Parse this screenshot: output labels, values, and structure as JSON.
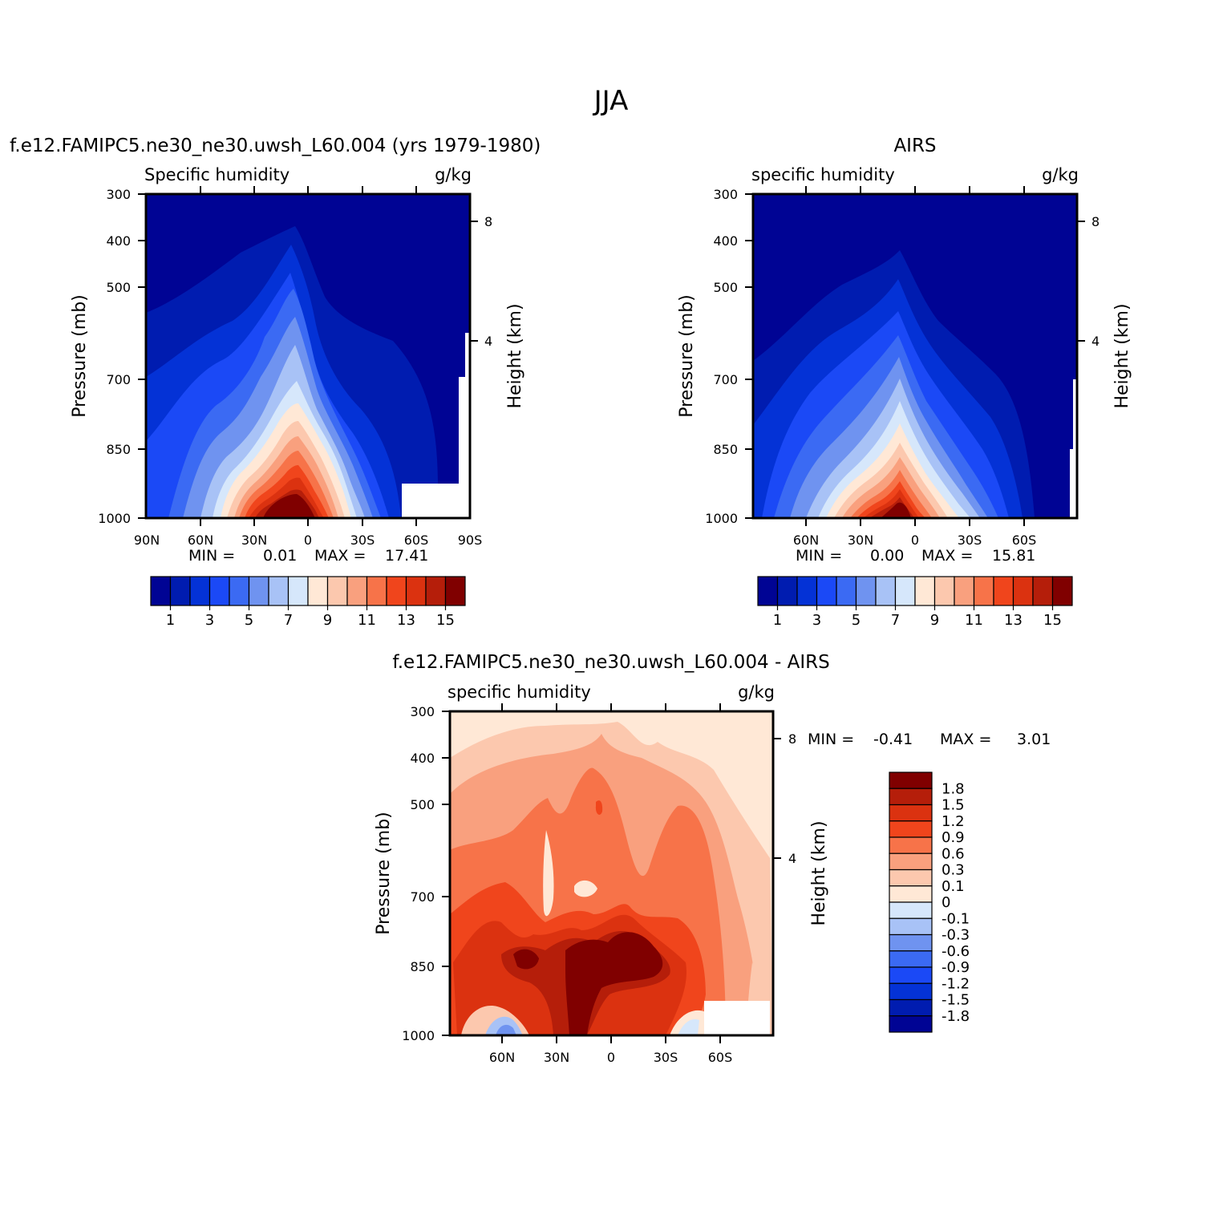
{
  "page_title": "JJA",
  "colors": {
    "seq": [
      "#000494",
      "#001CB0",
      "#0432D6",
      "#1B49F6",
      "#3B6AF3",
      "#6F93F0",
      "#A8C2F6",
      "#D6E7FB",
      "#FFE8D6",
      "#FCC8AE",
      "#F9A07E",
      "#F77349",
      "#F0451C",
      "#DB3210",
      "#B51E0A",
      "#800000"
    ],
    "div": [
      "#000494",
      "#001CB0",
      "#0432D6",
      "#1B49F6",
      "#3B6AF3",
      "#6F93F0",
      "#A8C2F6",
      "#D6E7FB",
      "#FFE8D6",
      "#FCC8AE",
      "#F9A07E",
      "#F77349",
      "#F0451C",
      "#DB3210",
      "#B51E0A",
      "#800000"
    ]
  },
  "chart_data": [
    {
      "type": "heatmap",
      "panel_title": "f.e12.FAMIPC5.ne30_ne30.uwsh_L60.004 (yrs 1979-1980)",
      "left_string": "Specific humidity",
      "right_string": "g/kg",
      "ylabel": "Pressure (mb)",
      "ylabel_right": "Height (km)",
      "y_ticks": [
        "300",
        "400",
        "500",
        "700",
        "850",
        "1000"
      ],
      "y_ticks_right": [
        "8",
        "4"
      ],
      "x_ticks": [
        "90N",
        "60N",
        "30N",
        "0",
        "30S",
        "60S",
        "90S"
      ],
      "min_label": "MIN =",
      "min_value": "0.01",
      "max_label": "MAX =",
      "max_value": "17.41",
      "colorbar": {
        "levels": [
          1,
          2,
          3,
          4,
          5,
          6,
          7,
          8,
          9,
          10,
          11,
          12,
          13,
          14,
          15
        ],
        "tick_labels": [
          "1",
          "3",
          "5",
          "7",
          "9",
          "11",
          "13",
          "15"
        ]
      },
      "contour_peaks_lat_pressure": [
        [
          -10,
          940,
          17.41
        ],
        [
          45,
          900,
          5
        ]
      ]
    },
    {
      "type": "heatmap",
      "panel_title": "AIRS",
      "left_string": "specific humidity",
      "right_string": "g/kg",
      "ylabel": "Pressure (mb)",
      "ylabel_right": "Height (km)",
      "y_ticks": [
        "300",
        "400",
        "500",
        "700",
        "850",
        "1000"
      ],
      "y_ticks_right": [
        "8",
        "4"
      ],
      "x_ticks": [
        "60N",
        "30N",
        "0",
        "30S",
        "60S"
      ],
      "min_label": "MIN =",
      "min_value": "0.00",
      "max_label": "MAX =",
      "max_value": "15.81",
      "colorbar": {
        "levels": [
          1,
          2,
          3,
          4,
          5,
          6,
          7,
          8,
          9,
          10,
          11,
          12,
          13,
          14,
          15
        ],
        "tick_labels": [
          "1",
          "3",
          "5",
          "7",
          "9",
          "11",
          "13",
          "15"
        ]
      }
    },
    {
      "type": "heatmap",
      "panel_title": "f.e12.FAMIPC5.ne30_ne30.uwsh_L60.004 - AIRS",
      "left_string": "specific humidity",
      "right_string": "g/kg",
      "ylabel": "Pressure (mb)",
      "ylabel_right": "Height (km)",
      "y_ticks": [
        "300",
        "400",
        "500",
        "700",
        "850",
        "1000"
      ],
      "y_ticks_right": [
        "8",
        "4"
      ],
      "x_ticks": [
        "60N",
        "30N",
        "0",
        "30S",
        "60S"
      ],
      "min_label": "MIN =",
      "min_value": "-0.41",
      "max_label": "MAX =",
      "max_value": "3.01",
      "colorbar": {
        "levels": [
          -1.8,
          -1.5,
          -1.2,
          -0.9,
          -0.6,
          -0.3,
          -0.1,
          0,
          0.1,
          0.3,
          0.6,
          0.9,
          1.2,
          1.5,
          1.8
        ],
        "tick_labels": [
          "1.8",
          "1.5",
          "1.2",
          "0.9",
          "0.6",
          "0.3",
          "0.1",
          "0",
          "-0.1",
          "-0.3",
          "-0.6",
          "-0.9",
          "-1.2",
          "-1.5",
          "-1.8"
        ]
      }
    }
  ]
}
